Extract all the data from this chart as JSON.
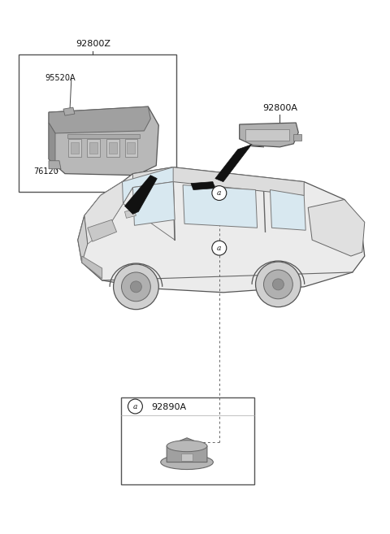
{
  "bg_color": "#ffffff",
  "labels": {
    "main_box_label": "92800Z",
    "part_95520A": "95520A",
    "part_76120": "76120",
    "part_92800A": "92800A",
    "part_92890A": "92890A",
    "circle_a": "a"
  },
  "colors": {
    "outline": "#222222",
    "text": "#111111",
    "line": "#444444",
    "car_body": "#e8e8e8",
    "car_line": "#555555",
    "component_mid": "#999999",
    "component_dark": "#666666",
    "component_light": "#cccccc",
    "black": "#111111",
    "white": "#ffffff"
  }
}
